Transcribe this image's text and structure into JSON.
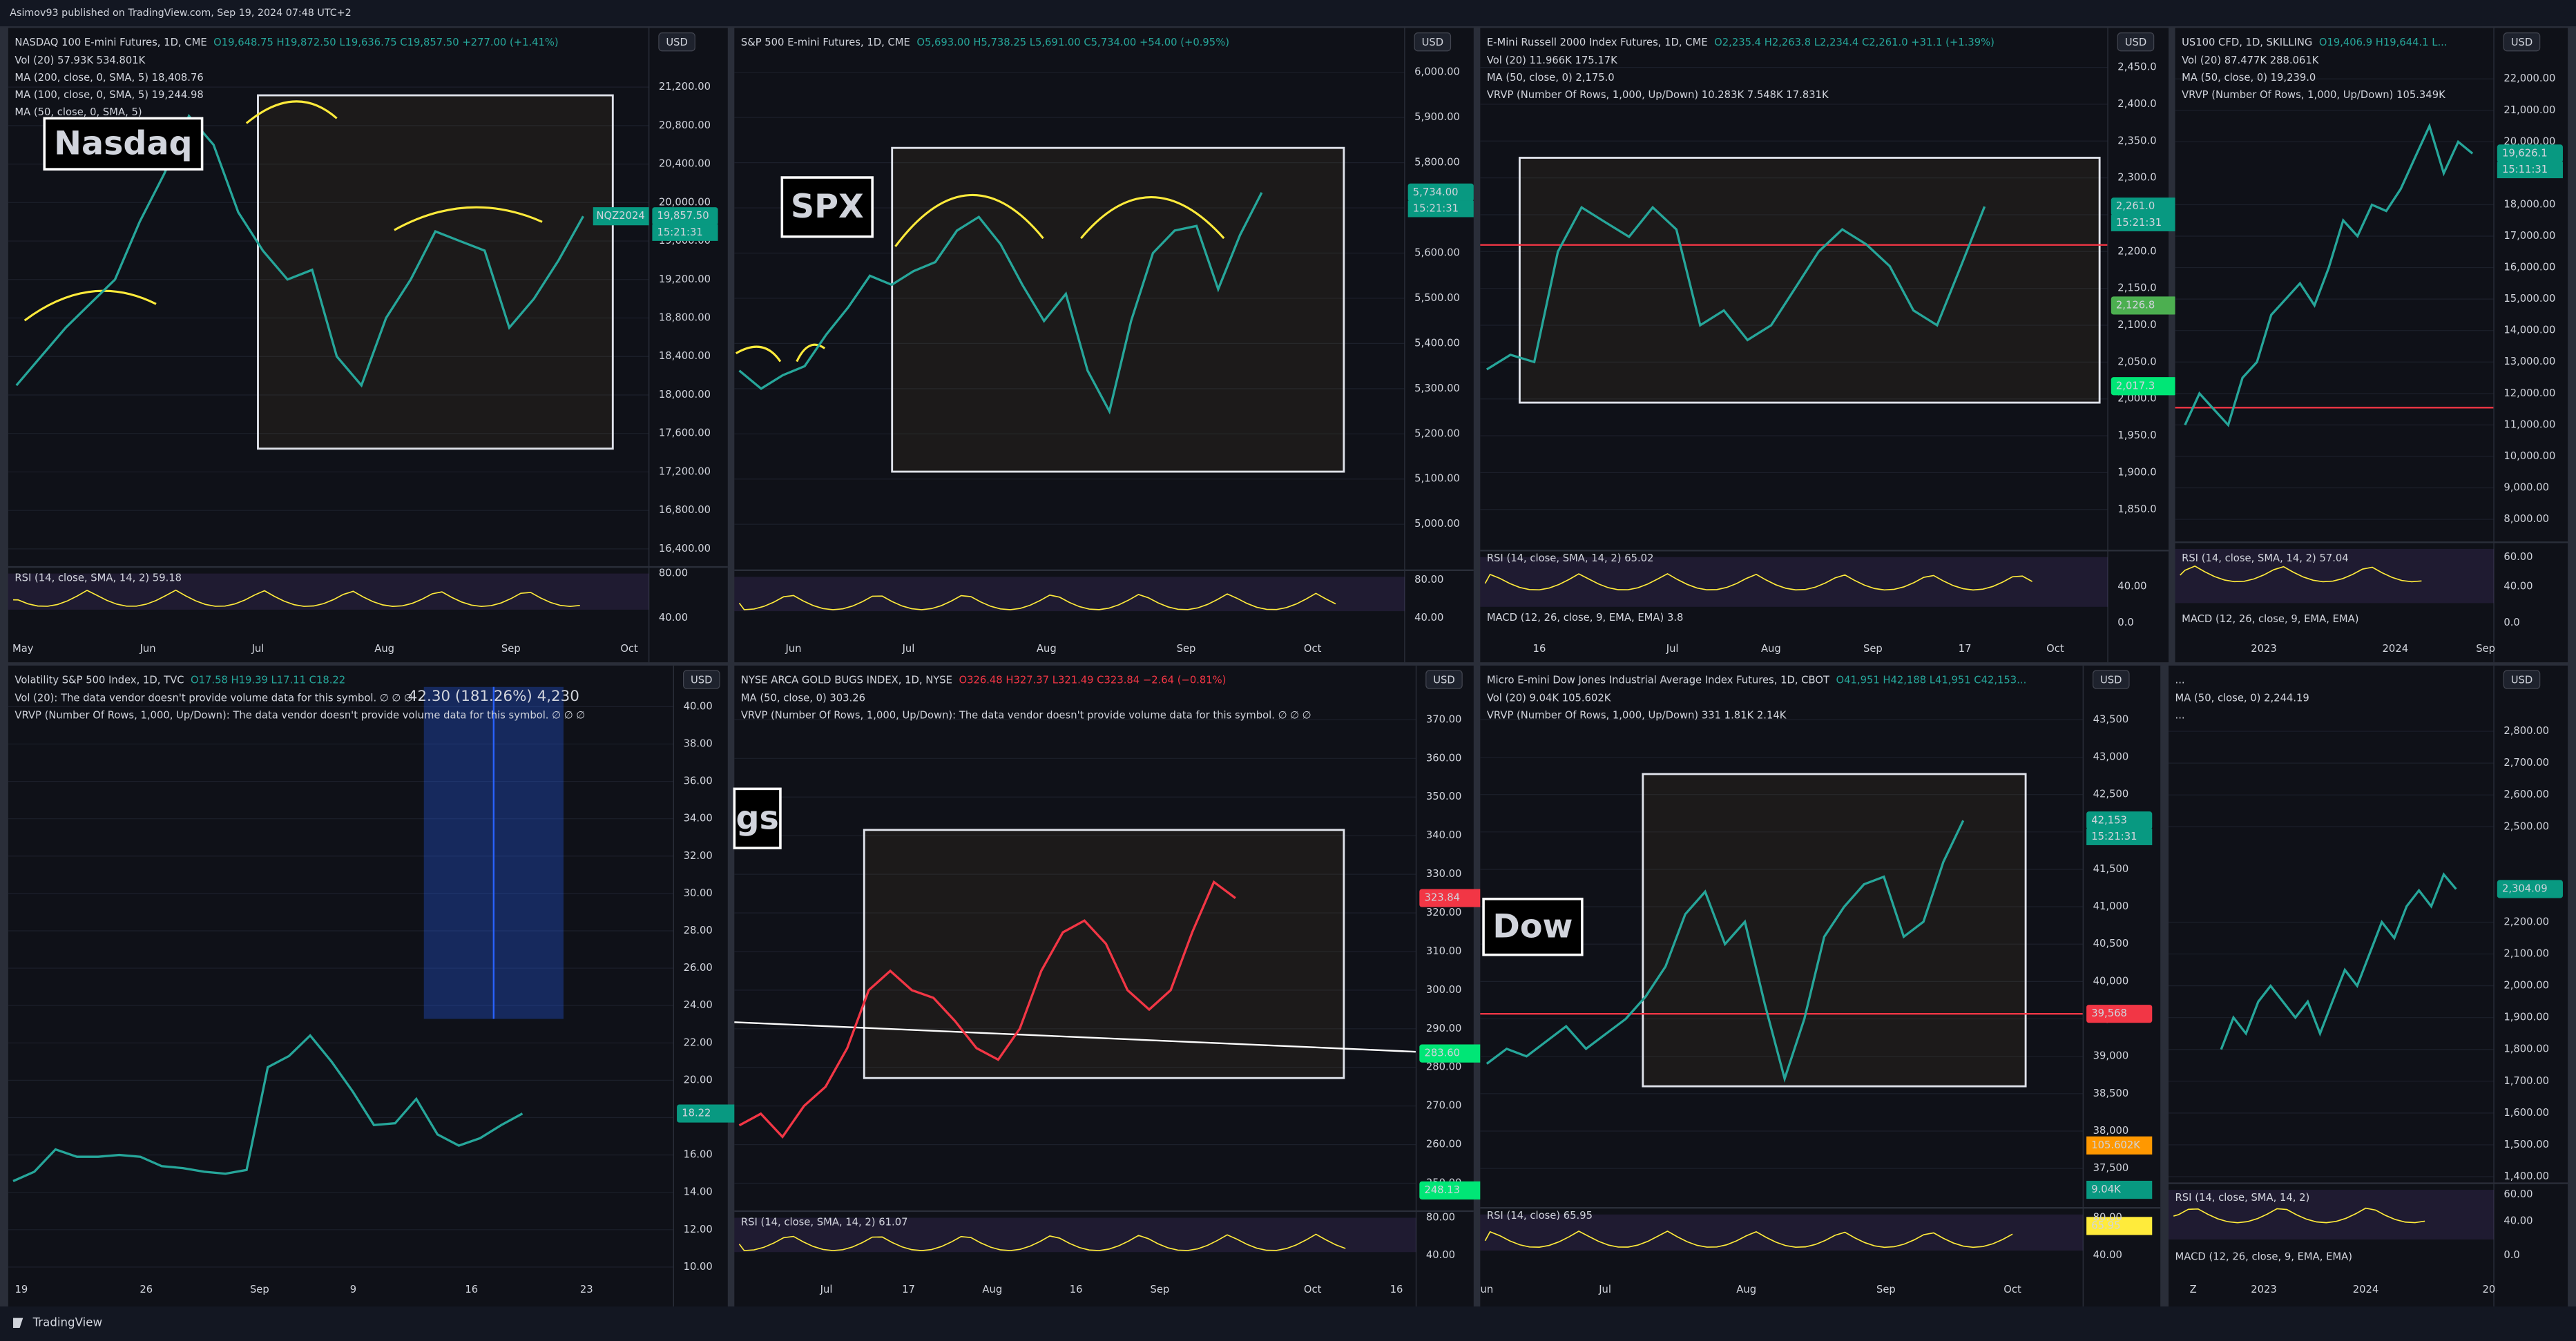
{
  "header": {
    "publisher": "Asimov93 published on TradingView.com, Sep 19, 2024 07:48 UTC+2"
  },
  "footer": {
    "brand": "TradingView"
  },
  "panels": [
    {
      "title": "NASDAQ 100 E-mini Futures, 1D, CME",
      "ohlc": "O19,648.75 H19,872.50 L19,636.75 C19,857.50 +277.00 (+1.41%)",
      "trend_color": "#26a69a",
      "currency": "USD",
      "indicators": [
        "Vol (20) 57.93K 534.801K",
        "MA (200, close, 0, SMA, 5) 18,408.76",
        "MA (100, close, 0, SMA, 5) 19,244.98",
        "MA (50, close, 0, SMA, 5)"
      ],
      "label": "Nasdaq",
      "symbol_tag": "NQZ2024",
      "countdown": "15:21:31",
      "ylim": [
        16400,
        21200
      ],
      "yticks": [
        {
          "value": 21200,
          "label": "21,200.00"
        },
        {
          "value": 20800,
          "label": "20,800.00"
        },
        {
          "value": 20400,
          "label": "20,400.00"
        },
        {
          "value": 20000,
          "label": "20,000.00"
        },
        {
          "value": 19600,
          "label": "19,600.00"
        },
        {
          "value": 19200,
          "label": "19,200.00"
        },
        {
          "value": 18800,
          "label": "18,800.00"
        },
        {
          "value": 18400,
          "label": "18,400.00"
        },
        {
          "value": 18000,
          "label": "18,000.00"
        },
        {
          "value": 17600,
          "label": "17,600.00"
        },
        {
          "value": 17200,
          "label": "17,200.00"
        },
        {
          "value": 16800,
          "label": "16,800.00"
        },
        {
          "value": 16400,
          "label": "16,400.00"
        }
      ],
      "closes": [
        18100,
        18400,
        18700,
        18950,
        19200,
        19800,
        20300,
        20900,
        20600,
        19900,
        19500,
        19200,
        19300,
        18400,
        18100,
        18800,
        19200,
        19700,
        19600,
        19500,
        18700,
        19000,
        19400,
        19857.5
      ],
      "tags": [
        {
          "value": 19857.5,
          "label": "19,857.50",
          "color": "#089981"
        }
      ],
      "time_labels": [
        "May",
        "Jun",
        "Jul",
        "Aug",
        "Sep",
        "Oct"
      ],
      "oscillators": [
        "RSI (14, close, SMA, 14, 2) 59.18"
      ],
      "osc_ticks": [
        "80.00",
        "40.00"
      ]
    },
    {
      "title": "S&P 500 E-mini Futures, 1D, CME",
      "ohlc": "O5,693.00 H5,738.25 L5,691.00 C5,734.00 +54.00 (+0.95%)",
      "trend_color": "#26a69a",
      "currency": "USD",
      "indicators": [],
      "label": "SPX",
      "countdown": "15:21:31",
      "ylim": [
        5000,
        6000
      ],
      "yticks": [
        {
          "value": 6000,
          "label": "6,000.00"
        },
        {
          "value": 5900,
          "label": "5,900.00"
        },
        {
          "value": 5800,
          "label": "5,800.00"
        },
        {
          "value": 5700,
          "label": "5,700.00"
        },
        {
          "value": 5600,
          "label": "5,600.00"
        },
        {
          "value": 5500,
          "label": "5,500.00"
        },
        {
          "value": 5400,
          "label": "5,400.00"
        },
        {
          "value": 5300,
          "label": "5,300.00"
        },
        {
          "value": 5200,
          "label": "5,200.00"
        },
        {
          "value": 5100,
          "label": "5,100.00"
        },
        {
          "value": 5000,
          "label": "5,000.00"
        }
      ],
      "closes": [
        5340,
        5300,
        5330,
        5350,
        5420,
        5480,
        5550,
        5530,
        5560,
        5580,
        5650,
        5680,
        5620,
        5530,
        5450,
        5510,
        5340,
        5250,
        5450,
        5600,
        5650,
        5660,
        5520,
        5640,
        5734
      ],
      "tags": [
        {
          "value": 5734,
          "label": "5,734.00",
          "color": "#089981"
        }
      ],
      "time_labels": [
        "Jun",
        "Jul",
        "Aug",
        "Sep",
        "Oct"
      ],
      "oscillators": [],
      "osc_ticks": [
        "80.00",
        "40.00"
      ]
    },
    {
      "title": "E-Mini Russell 2000 Index Futures, 1D, CME",
      "ohlc": "O2,235.4 H2,263.8 L2,234.4 C2,261.0 +31.1 (+1.39%)",
      "trend_color": "#26a69a",
      "currency": "USD",
      "indicators": [
        "Vol (20) 11.966K 175.17K",
        "MA (50, close, 0) 2,175.0",
        "VRVP (Number Of Rows, 1,000, Up/Down) 10.283K 7.548K 17.831K"
      ],
      "countdown": "15:21:31",
      "ylim": [
        1850,
        2450
      ],
      "yticks": [
        {
          "value": 2450,
          "label": "2,450.0"
        },
        {
          "value": 2400,
          "label": "2,400.0"
        },
        {
          "value": 2350,
          "label": "2,350.0"
        },
        {
          "value": 2300,
          "label": "2,300.0"
        },
        {
          "value": 2250,
          "label": "2,250.0"
        },
        {
          "value": 2200,
          "label": "2,200.0"
        },
        {
          "value": 2150,
          "label": "2,150.0"
        },
        {
          "value": 2100,
          "label": "2,100.0"
        },
        {
          "value": 2050,
          "label": "2,050.0"
        },
        {
          "value": 2000,
          "label": "2,000.0"
        },
        {
          "value": 1950,
          "label": "1,950.0"
        },
        {
          "value": 1900,
          "label": "1,900.0"
        },
        {
          "value": 1850,
          "label": "1,850.0"
        }
      ],
      "closes": [
        2040,
        2060,
        2050,
        2200,
        2260,
        2240,
        2220,
        2260,
        2230,
        2100,
        2120,
        2080,
        2100,
        2150,
        2200,
        2230,
        2210,
        2180,
        2120,
        2100,
        2180,
        2261
      ],
      "levels": [
        {
          "value": 2209,
          "color": "#f23645"
        }
      ],
      "tags": [
        {
          "value": 2261,
          "label": "2,261.0",
          "color": "#089981"
        },
        {
          "value": 2126.8,
          "label": "2,126.8",
          "color": "#4caf50"
        },
        {
          "value": 2017.3,
          "label": "2,017.3",
          "color": "#00e676"
        }
      ],
      "time_labels": [
        "16",
        "Jul",
        "Aug",
        "Sep",
        "17",
        "Oct"
      ],
      "oscillators": [
        "RSI (14, close, SMA, 14, 2) 65.02",
        "MACD (12, 26, close, 9, EMA, EMA) 3.8"
      ],
      "osc_ticks": [
        "40.00",
        "0.0"
      ]
    },
    {
      "title": "US100 CFD, 1D, SKILLING",
      "ohlc": "O19,406.9 H19,644.1 L...",
      "trend_color": "#26a69a",
      "currency": "USD",
      "indicators": [
        "Vol (20) 87.477K 288.061K",
        "MA (50, close, 0) 19,239.0",
        "VRVP (Number Of Rows, 1,000, Up/Down) 105.349K"
      ],
      "countdown": "15:11:31",
      "ylim": [
        8000,
        22000
      ],
      "yticks": [
        {
          "value": 22000,
          "label": "22,000.00"
        },
        {
          "value": 21000,
          "label": "21,000.00"
        },
        {
          "value": 20000,
          "label": "20,000.00"
        },
        {
          "value": 18000,
          "label": "18,000.00"
        },
        {
          "value": 17000,
          "label": "17,000.00"
        },
        {
          "value": 16000,
          "label": "16,000.00"
        },
        {
          "value": 15000,
          "label": "15,000.00"
        },
        {
          "value": 14000,
          "label": "14,000.00"
        },
        {
          "value": 13000,
          "label": "13,000.00"
        },
        {
          "value": 12000,
          "label": "12,000.00"
        },
        {
          "value": 11000,
          "label": "11,000.00"
        },
        {
          "value": 10000,
          "label": "10,000.00"
        },
        {
          "value": 9000,
          "label": "9,000.00"
        },
        {
          "value": 8000,
          "label": "8,000.00"
        }
      ],
      "closes": [
        11000,
        12000,
        11500,
        11000,
        12500,
        13000,
        14500,
        15000,
        15500,
        14800,
        16000,
        17500,
        17000,
        18000,
        17800,
        18500,
        19500,
        20500,
        19000,
        20000,
        19626.1
      ],
      "levels": [
        {
          "value": 11550,
          "color": "#f23645"
        }
      ],
      "tags": [
        {
          "value": 19626.1,
          "label": "19,626.1",
          "color": "#089981"
        }
      ],
      "time_labels": [
        "2023",
        "2024",
        "Sep"
      ],
      "oscillators": [
        "RSI (14, close, SMA, 14, 2) 57.04",
        "MACD (12, 26, close, 9, EMA, EMA)"
      ],
      "osc_ticks": [
        "60.00",
        "40.00",
        "0.0"
      ]
    },
    {
      "title": "Volatility S&P 500 Index, 1D, TVC",
      "ohlc": "O17.58 H19.39 L17.11 C18.22",
      "trend_color": "#26a69a",
      "currency": "USD",
      "indicators": [
        "Vol (20): The data vendor doesn't provide volume data for this symbol. ∅ ∅ ∅",
        "VRVP (Number Of Rows, 1,000, Up/Down): The data vendor doesn't provide volume data for this symbol. ∅ ∅ ∅"
      ],
      "measure": "42.30 (181.26%) 4,230",
      "ylim": [
        10,
        40
      ],
      "yticks": [
        {
          "value": 40,
          "label": "40.00"
        },
        {
          "value": 38,
          "label": "38.00"
        },
        {
          "value": 36,
          "label": "36.00"
        },
        {
          "value": 34,
          "label": "34.00"
        },
        {
          "value": 32,
          "label": "32.00"
        },
        {
          "value": 30,
          "label": "30.00"
        },
        {
          "value": 28,
          "label": "28.00"
        },
        {
          "value": 26,
          "label": "26.00"
        },
        {
          "value": 24,
          "label": "24.00"
        },
        {
          "value": 22,
          "label": "22.00"
        },
        {
          "value": 20,
          "label": "20.00"
        },
        {
          "value": 18,
          "label": "18.00"
        },
        {
          "value": 16,
          "label": "16.00"
        },
        {
          "value": 14,
          "label": "14.00"
        },
        {
          "value": 12,
          "label": "12.00"
        },
        {
          "value": 10,
          "label": "10.00"
        }
      ],
      "closes": [
        14.6,
        15.1,
        16.3,
        15.9,
        15.9,
        16,
        15.9,
        15.4,
        15.3,
        15.1,
        15,
        15.2,
        20.7,
        21.3,
        22.4,
        21,
        19.4,
        17.6,
        17.7,
        19,
        17.1,
        16.5,
        16.9,
        17.6,
        18.22
      ],
      "tags": [
        {
          "value": 18.22,
          "label": "18.22",
          "color": "#089981"
        }
      ],
      "time_labels": [
        "19",
        "26",
        "Sep",
        "9",
        "16",
        "23"
      ],
      "oscillators": [],
      "osc_ticks": []
    },
    {
      "title": "NYSE ARCA GOLD BUGS INDEX, 1D, NYSE",
      "ohlc": "O326.48 H327.37 L321.49 C323.84 −2.64 (−0.81%)",
      "trend_color": "#f23645",
      "currency": "USD",
      "indicators": [
        "MA (50, close, 0) 303.26",
        "VRVP (Number Of Rows, 1,000, Up/Down): The data vendor doesn't provide volume data for this symbol. ∅ ∅ ∅"
      ],
      "label": "gs",
      "ylim": [
        250,
        370
      ],
      "yticks": [
        {
          "value": 370,
          "label": "370.00"
        },
        {
          "value": 360,
          "label": "360.00"
        },
        {
          "value": 350,
          "label": "350.00"
        },
        {
          "value": 340,
          "label": "340.00"
        },
        {
          "value": 330,
          "label": "330.00"
        },
        {
          "value": 320,
          "label": "320.00"
        },
        {
          "value": 310,
          "label": "310.00"
        },
        {
          "value": 300,
          "label": "300.00"
        },
        {
          "value": 290,
          "label": "290.00"
        },
        {
          "value": 280,
          "label": "280.00"
        },
        {
          "value": 270,
          "label": "270.00"
        },
        {
          "value": 260,
          "label": "260.00"
        },
        {
          "value": 250,
          "label": "250.00"
        }
      ],
      "closes": [
        265,
        268,
        262,
        270,
        275,
        285,
        300,
        305,
        300,
        298,
        292,
        285,
        282,
        290,
        305,
        315,
        318,
        312,
        300,
        295,
        300,
        315,
        328,
        323.84
      ],
      "tags": [
        {
          "value": 323.84,
          "label": "323.84",
          "color": "#f23645"
        },
        {
          "value": 283.6,
          "label": "283.60",
          "color": "#00e676"
        },
        {
          "value": 248.13,
          "label": "248.13",
          "color": "#00e676"
        }
      ],
      "time_labels": [
        "Jul",
        "17",
        "Aug",
        "16",
        "Sep",
        "Oct",
        "16"
      ],
      "oscillators": [
        "RSI (14, close, SMA, 14, 2) 61.07"
      ],
      "osc_ticks": [
        "80.00",
        "40.00"
      ]
    },
    {
      "title": "Micro E-mini Dow Jones Industrial Average Index Futures, 1D, CBOT",
      "ohlc": "O41,951 H42,188 L41,951 C42,153...",
      "trend_color": "#26a69a",
      "currency": "USD",
      "indicators": [
        "Vol (20) 9.04K 105.602K",
        "VRVP (Number Of Rows, 1,000, Up/Down) 331 1.81K 2.14K"
      ],
      "label": "Dow",
      "countdown": "15:21:31",
      "ylim": [
        37500,
        43500
      ],
      "yticks": [
        {
          "value": 43500,
          "label": "43,500"
        },
        {
          "value": 43000,
          "label": "43,000"
        },
        {
          "value": 42500,
          "label": "42,500"
        },
        {
          "value": 42000,
          "label": "42,000"
        },
        {
          "value": 41500,
          "label": "41,500"
        },
        {
          "value": 41000,
          "label": "41,000"
        },
        {
          "value": 40500,
          "label": "40,500"
        },
        {
          "value": 40000,
          "label": "40,000"
        },
        {
          "value": 39500,
          "label": "39,500"
        },
        {
          "value": 39000,
          "label": "39,000"
        },
        {
          "value": 38500,
          "label": "38,500"
        },
        {
          "value": 38000,
          "label": "38,000"
        },
        {
          "value": 37500,
          "label": "37,500"
        }
      ],
      "closes": [
        38900,
        39100,
        39000,
        39200,
        39400,
        39100,
        39300,
        39500,
        39800,
        40200,
        40900,
        41200,
        40500,
        40800,
        39700,
        38700,
        39500,
        40600,
        41000,
        41300,
        41400,
        40600,
        40800,
        41600,
        42153
      ],
      "levels": [
        {
          "value": 39568,
          "color": "#f23645"
        }
      ],
      "tags": [
        {
          "value": 42153,
          "label": "42,153",
          "color": "#089981"
        },
        {
          "value": 39568,
          "label": "39,568",
          "color": "#f23645"
        }
      ],
      "pane_tags": [
        "105.602K",
        "9.04K",
        "65.95"
      ],
      "time_labels": [
        "un",
        "Jul",
        "Aug",
        "Sep",
        "Oct"
      ],
      "oscillators": [
        "RSI (14, close) 65.95"
      ],
      "osc_ticks": [
        "80.00",
        "40.00"
      ]
    },
    {
      "title": "...",
      "ohlc": "",
      "trend_color": "#26a69a",
      "currency": "USD",
      "indicators": [
        "MA (50, close, 0) 2,244.19",
        "..."
      ],
      "ylim": [
        1400,
        2800
      ],
      "yticks": [
        {
          "value": 2800,
          "label": "2,800.00"
        },
        {
          "value": 2700,
          "label": "2,700.00"
        },
        {
          "value": 2600,
          "label": "2,600.00"
        },
        {
          "value": 2500,
          "label": "2,500.00"
        },
        {
          "value": 2200,
          "label": "2,200.00"
        },
        {
          "value": 2100,
          "label": "2,100.00"
        },
        {
          "value": 2000,
          "label": "2,000.00"
        },
        {
          "value": 1900,
          "label": "1,900.00"
        },
        {
          "value": 1800,
          "label": "1,800.00"
        },
        {
          "value": 1700,
          "label": "1,700.00"
        },
        {
          "value": 1600,
          "label": "1,600.00"
        },
        {
          "value": 1500,
          "label": "1,500.00"
        },
        {
          "value": 1400,
          "label": "1,400.00"
        }
      ],
      "closes": [
        1800,
        1900,
        1850,
        1950,
        2000,
        1950,
        1900,
        1950,
        1850,
        1950,
        2050,
        2000,
        2100,
        2200,
        2150,
        2250,
        2300,
        2250,
        2350,
        2304.09
      ],
      "tags": [
        {
          "value": 2304.09,
          "label": "2,304.09",
          "color": "#089981"
        }
      ],
      "time_labels": [
        "Z",
        "2023",
        "2024",
        "20"
      ],
      "oscillators": [
        "RSI (14, close, SMA, 14, 2)",
        "MACD (12, 26, close, 9, EMA, EMA)"
      ],
      "osc_ticks": [
        "60.00",
        "40.00",
        "0.0"
      ]
    }
  ]
}
